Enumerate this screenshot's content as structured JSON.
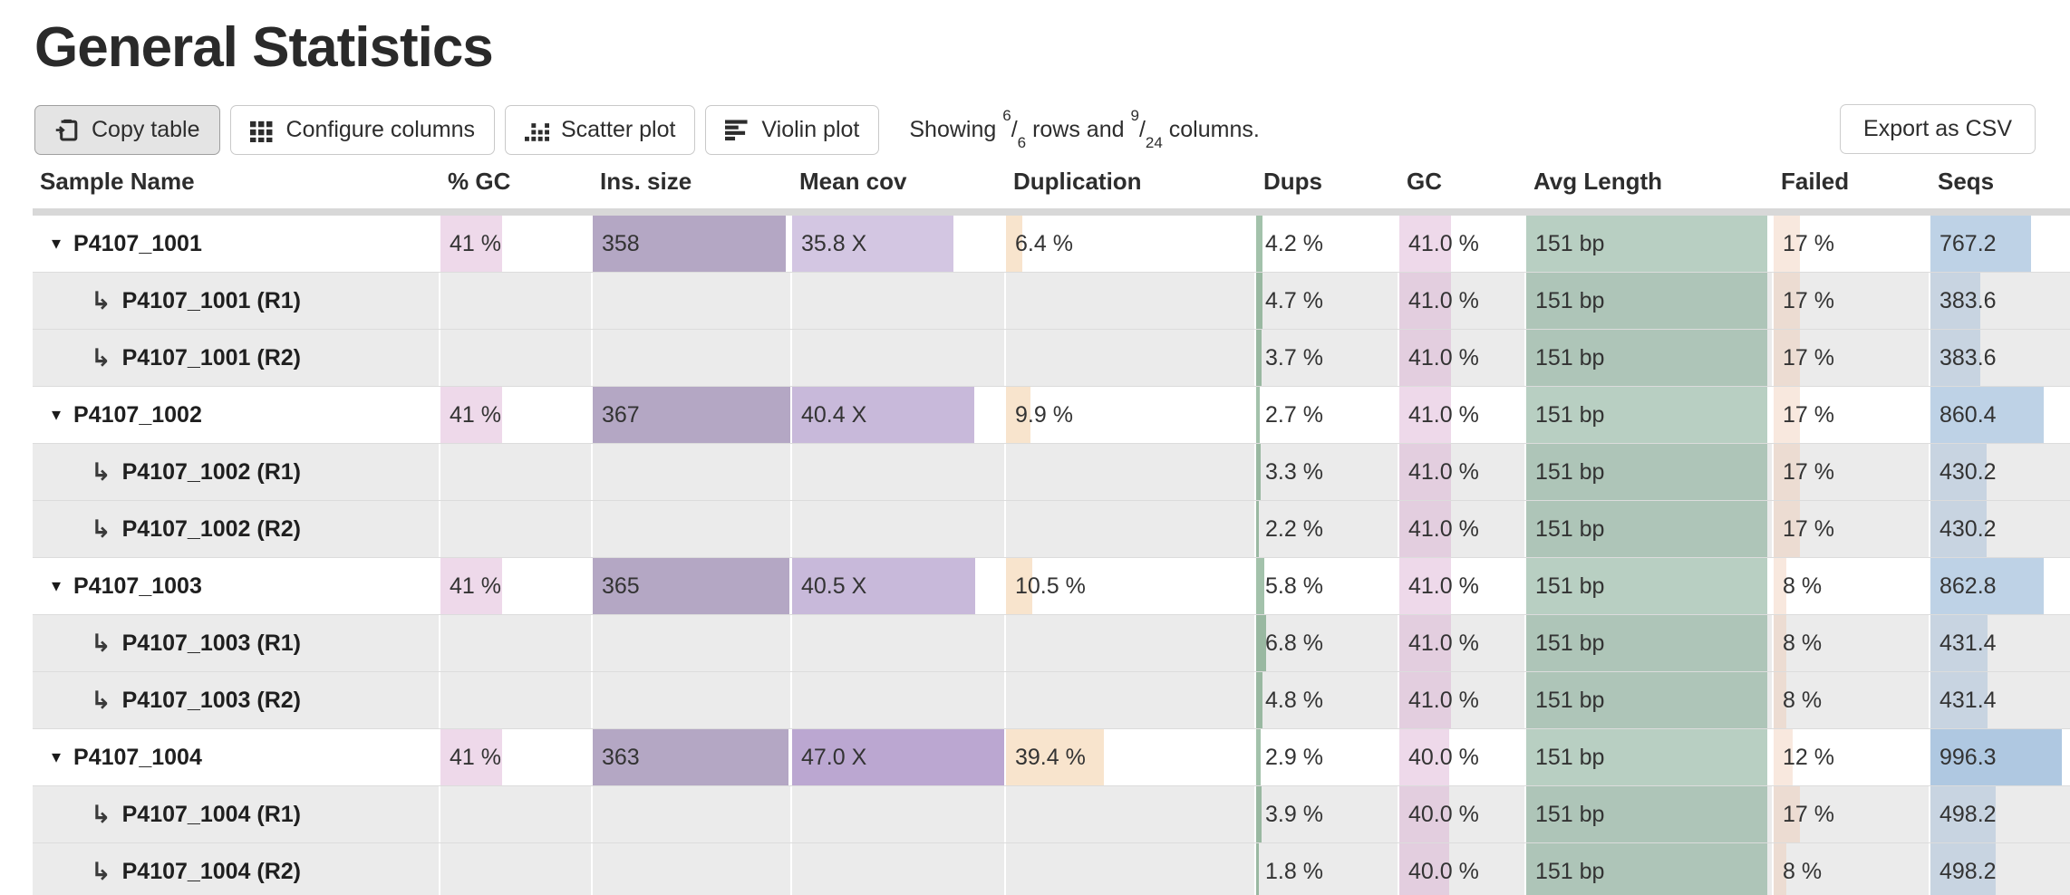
{
  "title": "General Statistics",
  "toolbar": {
    "copy_table": "Copy table",
    "configure_columns": "Configure columns",
    "scatter_plot": "Scatter plot",
    "violin_plot": "Violin plot",
    "showing": {
      "prefix": "Showing",
      "rows_shown": "6",
      "rows_total": "6",
      "mid": "rows and",
      "cols_shown": "9",
      "cols_total": "24",
      "suffix": "columns."
    },
    "export_csv": "Export as CSV"
  },
  "icons": {
    "caret": "▾",
    "subsample": "↳"
  },
  "colors": {
    "accent_bars": {
      "gc_pct": "rgba(217,170,208,0.45)",
      "ins": "rgba(105,79,137,0.5)",
      "meancov": "rgba(150,120,185,0.52)",
      "dup": "rgba(241,201,155,0.5)",
      "dups": "rgba(71,133,87,0.5)",
      "gc2": "rgba(217,170,208,0.45)",
      "avglen": "rgba(113,159,133,0.5)",
      "failed": "rgba(238,198,173,0.4)",
      "seqs": "rgba(110,155,200,0.45)"
    },
    "child_row_bg": "#ebebeb",
    "header_band": "#d8d8d8"
  },
  "table": {
    "columns": [
      {
        "key": "sample",
        "label": "Sample Name"
      },
      {
        "key": "gc_pct",
        "label": "% GC"
      },
      {
        "key": "ins",
        "label": "Ins. size"
      },
      {
        "key": "meancov",
        "label": "Mean cov"
      },
      {
        "key": "dup",
        "label": "Duplication"
      },
      {
        "key": "dups",
        "label": "Dups"
      },
      {
        "key": "gc2",
        "label": "GC"
      },
      {
        "key": "avglen",
        "label": "Avg Length"
      },
      {
        "key": "failed",
        "label": "Failed"
      },
      {
        "key": "seqs",
        "label": "Seqs"
      }
    ],
    "rows": [
      {
        "type": "parent",
        "name": "P4107_1001",
        "cells": {
          "gc_pct": {
            "v": "41 %",
            "b": 41
          },
          "ins": {
            "v": "358",
            "b": 97.5
          },
          "meancov": {
            "v": "35.8 X",
            "b": 76,
            "c": "rgba(150,120,185,0.42)"
          },
          "dup": {
            "v": "6.4 %",
            "b": 6.4
          },
          "dups": {
            "v": "4.2 %",
            "b": 4.2
          },
          "gc2": {
            "v": "41.0 %",
            "b": 41
          },
          "avglen": {
            "v": "151 bp",
            "b": 98
          },
          "failed": {
            "v": "17 %",
            "b": 17
          },
          "seqs": {
            "v": "767.2",
            "b": 72
          }
        }
      },
      {
        "type": "child",
        "name": "P4107_1001 (R1)",
        "cells": {
          "dups": {
            "v": "4.7 %",
            "b": 4.7
          },
          "gc2": {
            "v": "41.0 %",
            "b": 41
          },
          "avglen": {
            "v": "151 bp",
            "b": 98
          },
          "failed": {
            "v": "17 %",
            "b": 17
          },
          "seqs": {
            "v": "383.6",
            "b": 36,
            "c": "rgba(110,155,200,0.28)"
          }
        }
      },
      {
        "type": "child",
        "name": "P4107_1001 (R2)",
        "cells": {
          "dups": {
            "v": "3.7 %",
            "b": 3.7
          },
          "gc2": {
            "v": "41.0 %",
            "b": 41
          },
          "avglen": {
            "v": "151 bp",
            "b": 98
          },
          "failed": {
            "v": "17 %",
            "b": 17
          },
          "seqs": {
            "v": "383.6",
            "b": 36,
            "c": "rgba(110,155,200,0.28)"
          }
        }
      },
      {
        "type": "parent",
        "name": "P4107_1002",
        "cells": {
          "gc_pct": {
            "v": "41 %",
            "b": 41
          },
          "ins": {
            "v": "367",
            "b": 100
          },
          "meancov": {
            "v": "40.4 X",
            "b": 86
          },
          "dup": {
            "v": "9.9 %",
            "b": 9.9
          },
          "dups": {
            "v": "2.7 %",
            "b": 2.7
          },
          "gc2": {
            "v": "41.0 %",
            "b": 41
          },
          "avglen": {
            "v": "151 bp",
            "b": 98
          },
          "failed": {
            "v": "17 %",
            "b": 17
          },
          "seqs": {
            "v": "860.4",
            "b": 81
          }
        }
      },
      {
        "type": "child",
        "name": "P4107_1002 (R1)",
        "cells": {
          "dups": {
            "v": "3.3 %",
            "b": 3.3
          },
          "gc2": {
            "v": "41.0 %",
            "b": 41
          },
          "avglen": {
            "v": "151 bp",
            "b": 98
          },
          "failed": {
            "v": "17 %",
            "b": 17
          },
          "seqs": {
            "v": "430.2",
            "b": 40.5,
            "c": "rgba(110,155,200,0.28)"
          }
        }
      },
      {
        "type": "child",
        "name": "P4107_1002 (R2)",
        "cells": {
          "dups": {
            "v": "2.2 %",
            "b": 2.2
          },
          "gc2": {
            "v": "41.0 %",
            "b": 41
          },
          "avglen": {
            "v": "151 bp",
            "b": 98
          },
          "failed": {
            "v": "17 %",
            "b": 17
          },
          "seqs": {
            "v": "430.2",
            "b": 40.5,
            "c": "rgba(110,155,200,0.28)"
          }
        }
      },
      {
        "type": "parent",
        "name": "P4107_1003",
        "cells": {
          "gc_pct": {
            "v": "41 %",
            "b": 41
          },
          "ins": {
            "v": "365",
            "b": 99.5
          },
          "meancov": {
            "v": "40.5 X",
            "b": 86.2
          },
          "dup": {
            "v": "10.5 %",
            "b": 10.5
          },
          "dups": {
            "v": "5.8 %",
            "b": 5.8
          },
          "gc2": {
            "v": "41.0 %",
            "b": 41
          },
          "avglen": {
            "v": "151 bp",
            "b": 98
          },
          "failed": {
            "v": "8 %",
            "b": 8
          },
          "seqs": {
            "v": "862.8",
            "b": 81.2
          }
        }
      },
      {
        "type": "child",
        "name": "P4107_1003 (R1)",
        "cells": {
          "dups": {
            "v": "6.8 %",
            "b": 6.8
          },
          "gc2": {
            "v": "41.0 %",
            "b": 41
          },
          "avglen": {
            "v": "151 bp",
            "b": 98
          },
          "failed": {
            "v": "8 %",
            "b": 8
          },
          "seqs": {
            "v": "431.4",
            "b": 40.6,
            "c": "rgba(110,155,200,0.28)"
          }
        }
      },
      {
        "type": "child",
        "name": "P4107_1003 (R2)",
        "cells": {
          "dups": {
            "v": "4.8 %",
            "b": 4.8
          },
          "gc2": {
            "v": "41.0 %",
            "b": 41
          },
          "avglen": {
            "v": "151 bp",
            "b": 98
          },
          "failed": {
            "v": "8 %",
            "b": 8
          },
          "seqs": {
            "v": "431.4",
            "b": 40.6,
            "c": "rgba(110,155,200,0.28)"
          }
        }
      },
      {
        "type": "parent",
        "name": "P4107_1004",
        "cells": {
          "gc_pct": {
            "v": "41 %",
            "b": 41
          },
          "ins": {
            "v": "363",
            "b": 98.9
          },
          "meancov": {
            "v": "47.0 X",
            "b": 100,
            "c": "rgba(150,120,185,0.65)"
          },
          "dup": {
            "v": "39.4 %",
            "b": 39.4
          },
          "dups": {
            "v": "2.9 %",
            "b": 2.9
          },
          "gc2": {
            "v": "40.0 %",
            "b": 40
          },
          "avglen": {
            "v": "151 bp",
            "b": 98
          },
          "failed": {
            "v": "12 %",
            "b": 12
          },
          "seqs": {
            "v": "996.3",
            "b": 94,
            "c": "rgba(110,155,200,0.55)"
          }
        }
      },
      {
        "type": "child",
        "name": "P4107_1004 (R1)",
        "cells": {
          "dups": {
            "v": "3.9 %",
            "b": 3.9
          },
          "gc2": {
            "v": "40.0 %",
            "b": 40
          },
          "avglen": {
            "v": "151 bp",
            "b": 98
          },
          "failed": {
            "v": "17 %",
            "b": 17
          },
          "seqs": {
            "v": "498.2",
            "b": 47,
            "c": "rgba(110,155,200,0.28)"
          }
        }
      },
      {
        "type": "child",
        "name": "P4107_1004 (R2)",
        "cells": {
          "dups": {
            "v": "1.8 %",
            "b": 1.8
          },
          "gc2": {
            "v": "40.0 %",
            "b": 40
          },
          "avglen": {
            "v": "151 bp",
            "b": 98
          },
          "failed": {
            "v": "8 %",
            "b": 8
          },
          "seqs": {
            "v": "498.2",
            "b": 47,
            "c": "rgba(110,155,200,0.28)"
          }
        }
      },
      {
        "type": "partial",
        "name": "",
        "cells": {
          "gc_pct": {
            "b": 41
          },
          "ins": {
            "b": 97.5
          },
          "meancov": {
            "b": 100,
            "c": "rgba(150,120,185,0.65)"
          },
          "dup": {
            "b": 37
          },
          "dups": {
            "b": 3
          },
          "gc2": {
            "b": 45
          },
          "avglen": {
            "b": 98
          },
          "failed": {
            "b": 10
          },
          "seqs": {
            "b": 60
          }
        }
      }
    ]
  }
}
